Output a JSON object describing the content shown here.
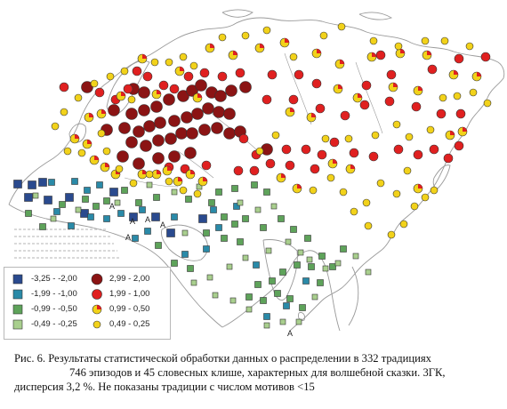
{
  "legend": {
    "left": [
      {
        "range": "-3,25 - -2,00",
        "symbol": "square",
        "color": "#2a4a8e"
      },
      {
        "range": "-1,99 - -1,00",
        "symbol": "square",
        "color": "#2a8aa8"
      },
      {
        "range": "-0,99 - -0,50",
        "symbol": "square",
        "color": "#5ea35a"
      },
      {
        "range": "-0,49 - -0,25",
        "symbol": "square",
        "color": "#a9cf8e"
      }
    ],
    "right": [
      {
        "range": "2,99 - 2,00",
        "symbol": "circle",
        "color": "#8b1414"
      },
      {
        "range": "1,99 - 1,00",
        "symbol": "circle",
        "color": "#e02020"
      },
      {
        "range": "0,99 - 0,50",
        "symbol": "circle-half",
        "color": "#e02020",
        "color2": "#f2d21a"
      },
      {
        "range": "0,49 - 0,25",
        "symbol": "circle",
        "color": "#f2d21a"
      }
    ]
  },
  "map_labels": [
    "A",
    "A",
    "A",
    "A",
    "A",
    "A"
  ],
  "caption": {
    "line1": "Рис. 6. Результаты статистической обработки данных о распределении в 332 традициях",
    "line2": "746 эпизодов и 45 словесных клише, характерных для волшебной сказки. 3ГК,",
    "line3": "дисперсия 3,2 %. Не показаны традиции с числом мотивов <15"
  },
  "colors": {
    "dark_red": "#8b1414",
    "red": "#e02020",
    "yellow": "#f2d21a",
    "dark_blue": "#2a4a8e",
    "teal": "#2a8aa8",
    "green": "#5ea35a",
    "light_green": "#a9cf8e",
    "coast": "#9a9a9a"
  }
}
